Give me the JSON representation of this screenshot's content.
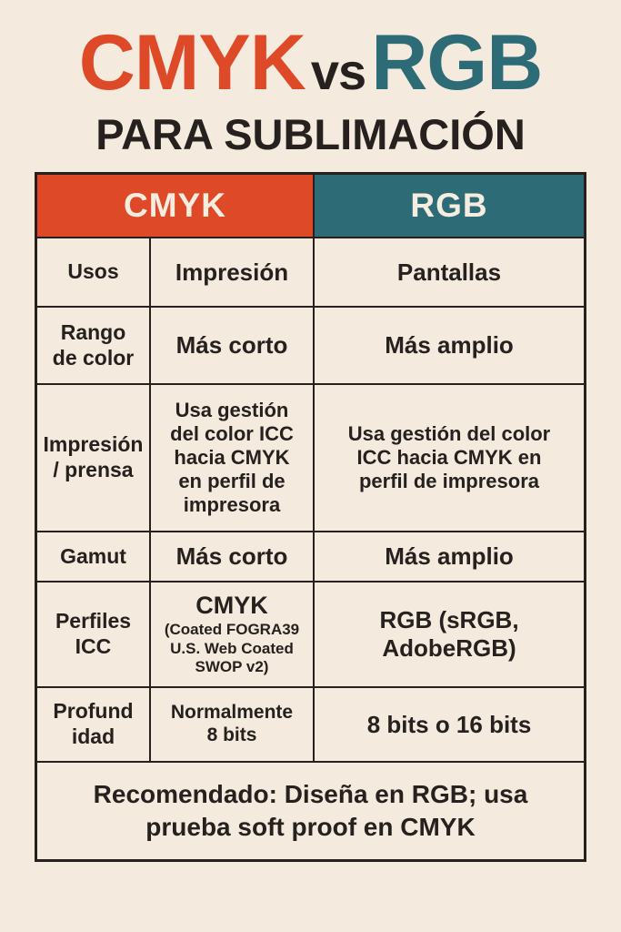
{
  "colors": {
    "background": "#F4EADE",
    "orange": "#DE4A28",
    "teal": "#2D6B77",
    "ink": "#26211E",
    "header_text": "#F6EDE1"
  },
  "title": {
    "cmyk": "CMYK",
    "vs": "vs",
    "rgb": "RGB",
    "subtitle": "PARA SUBLIMACIÓN"
  },
  "table": {
    "header": {
      "cmyk": "CMYK",
      "rgb": "RGB"
    },
    "rows": [
      {
        "label": "Usos",
        "cmyk": "Impresión",
        "rgb": "Pantallas"
      },
      {
        "label": "Rango\nde color",
        "cmyk": "Más corto",
        "rgb": "Más amplio"
      },
      {
        "label": "Impresión\n/ prensa",
        "cmyk": "Usa gestión\ndel color ICC\nhacia CMYK\nen perfil de\nimpresora",
        "rgb": "Usa gestión del color\nICC hacia CMYK en\nperfil de impresora"
      },
      {
        "label": "Gamut",
        "cmyk": "Más corto",
        "rgb": "Más amplio"
      },
      {
        "label": "Perfiles\nICC",
        "cmyk_main": "CMYK",
        "cmyk_sub": "(Coated FOGRA39\nU.S. Web Coated\nSWOP v2)",
        "rgb": "RGB (sRGB,\nAdobeRGB)"
      },
      {
        "label": "Profund\nidad",
        "cmyk": "Normalmente\n8 bits",
        "rgb": "8 bits o 16 bits"
      }
    ],
    "footer": "Recomendado: Diseña en RGB; usa\nprueba soft proof en CMYK"
  },
  "chart_data": {
    "type": "table",
    "title": "CMYK vs RGB PARA SUBLIMACIÓN",
    "columns": [
      "",
      "CMYK",
      "RGB"
    ],
    "rows": [
      [
        "Usos",
        "Impresión",
        "Pantallas"
      ],
      [
        "Rango de color",
        "Más corto",
        "Más amplio"
      ],
      [
        "Impresión / prensa",
        "Usa gestión del color ICC hacia CMYK en perfil de impresora",
        "Usa gestión del color ICC hacia CMYK en perfil de impresora"
      ],
      [
        "Gamut",
        "Más corto",
        "Más amplio"
      ],
      [
        "Perfiles ICC",
        "CMYK (Coated FOGRA39 U.S. Web Coated SWOP v2)",
        "RGB (sRGB, AdobeRGB)"
      ],
      [
        "Profundidad",
        "Normalmente 8 bits",
        "8 bits o 16 bits"
      ]
    ],
    "footer": "Recomendado: Diseña en RGB; usa prueba soft proof en CMYK",
    "layout_hints": {
      "header_cmyk_spans_label_column": true,
      "footer_spans_all_columns": true,
      "grid": "on"
    }
  }
}
